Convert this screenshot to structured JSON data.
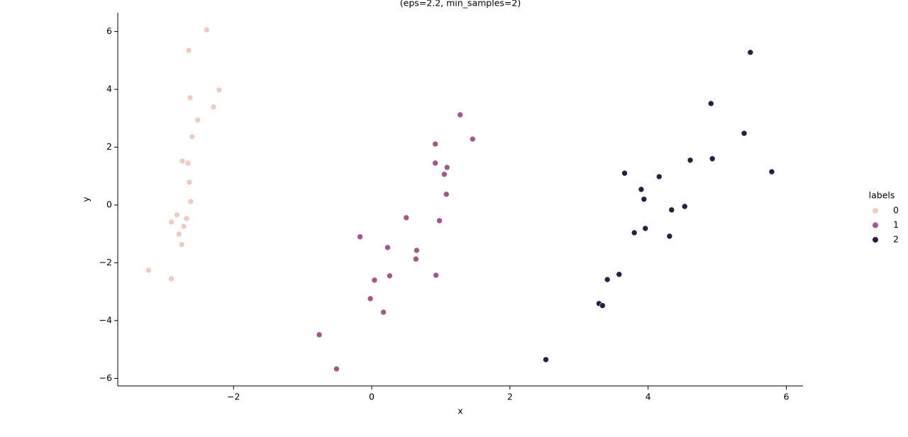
{
  "chart_data": {
    "type": "scatter",
    "title": "(eps=2.2, min_samples=2)",
    "x_label": "x",
    "y_label": "y",
    "legend_title": "labels",
    "legend": "right",
    "xlim": [
      -3.676,
      6.242
    ],
    "ylim": [
      -6.26,
      6.65
    ],
    "xticks": [
      {
        "value": -2,
        "label": "−2"
      },
      0,
      2,
      4,
      6
    ],
    "yticks": [
      {
        "value": -6,
        "label": "−6"
      },
      {
        "value": -4,
        "label": "−4"
      },
      {
        "value": -2,
        "label": "−2"
      },
      0,
      2,
      4,
      6
    ],
    "series": [
      {
        "name": "0",
        "color": "#ebcdc3",
        "x": [
          -2.39,
          -2.65,
          -2.21,
          -2.63,
          -2.29,
          -2.52,
          -2.6,
          -2.74,
          -2.66,
          -2.64,
          -2.62,
          -2.82,
          -2.68,
          -2.9,
          -2.72,
          -2.79,
          -2.75,
          -3.23,
          -2.9
        ],
        "y": [
          6.06,
          5.35,
          3.98,
          3.71,
          3.39,
          2.94,
          2.36,
          1.52,
          1.45,
          0.79,
          0.12,
          -0.34,
          -0.47,
          -0.59,
          -0.74,
          -1.01,
          -1.37,
          -2.26,
          -2.55
        ]
      },
      {
        "name": "1",
        "color": "#a1598a",
        "x": [
          1.28,
          1.46,
          0.92,
          0.92,
          1.09,
          1.05,
          1.08,
          0.5,
          0.98,
          -0.17,
          0.23,
          0.65,
          0.64,
          0.93,
          0.26,
          0.04,
          -0.02,
          0.17,
          -0.76,
          -0.51
        ],
        "y": [
          3.12,
          2.28,
          2.11,
          1.45,
          1.3,
          1.06,
          0.37,
          -0.44,
          -0.54,
          -1.1,
          -1.47,
          -1.57,
          -1.87,
          -2.43,
          -2.45,
          -2.6,
          -3.24,
          -3.71,
          -4.49,
          -5.67
        ]
      },
      {
        "name": "2",
        "color": "#2d1e3e",
        "x": [
          5.48,
          4.91,
          5.39,
          4.61,
          4.93,
          5.79,
          3.66,
          4.16,
          3.9,
          3.94,
          4.34,
          4.53,
          3.8,
          3.96,
          4.31,
          3.41,
          3.58,
          3.29,
          3.34,
          2.52
        ],
        "y": [
          5.28,
          3.51,
          2.48,
          1.55,
          1.6,
          1.15,
          1.1,
          0.98,
          0.54,
          0.2,
          -0.17,
          -0.05,
          -0.96,
          -0.81,
          -1.08,
          -2.58,
          -2.4,
          -3.41,
          -3.48,
          -5.35
        ]
      }
    ]
  }
}
